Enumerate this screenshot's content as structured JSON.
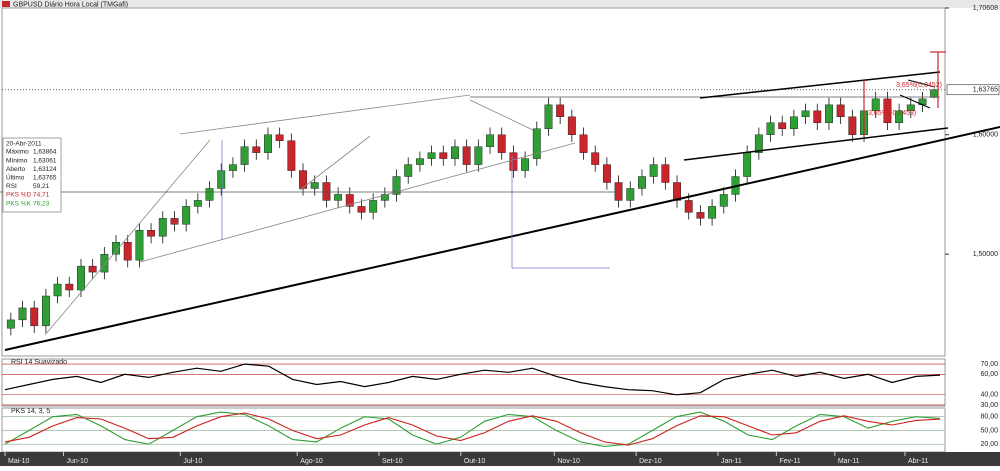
{
  "chart_data": {
    "type": "candlestick",
    "title": "GBPUSD Diário Hora Local (TMGafi)",
    "ylim": [
      1.4156,
      1.70608
    ],
    "yticks": [
      {
        "value": 1.5,
        "label": "1,50000"
      },
      {
        "value": 1.6,
        "label": "1,60000"
      },
      {
        "value": 1.70608,
        "label": "1,70608"
      }
    ],
    "last_price": {
      "value": 1.63765,
      "label": "1,63765"
    },
    "up_color": "#2f9e35",
    "down_color": "#c8262d",
    "annotations": [
      "3,65%(0,0452)",
      "3,65%(-0,0453)"
    ],
    "info": {
      "date": "20-Abr-2011",
      "rows": [
        [
          "Máximo",
          "1,63864"
        ],
        [
          "Mínimo",
          "1,63061"
        ],
        [
          "Aberto",
          "1,63124"
        ],
        [
          "Último",
          "1,63765"
        ],
        [
          "RSI",
          "59,21"
        ],
        [
          "PKS %D",
          "74,71"
        ],
        [
          "PKS %K",
          "76,23"
        ]
      ]
    },
    "categories": [
      "Mai-10",
      null,
      null,
      null,
      null,
      "Jun-10",
      null,
      null,
      null,
      null,
      null,
      null,
      null,
      null,
      null,
      "Jul-10",
      null,
      null,
      null,
      null,
      null,
      null,
      null,
      null,
      null,
      "Ago-10",
      null,
      null,
      null,
      null,
      null,
      null,
      "Set-10",
      null,
      null,
      null,
      null,
      null,
      null,
      "Out-10",
      null,
      null,
      null,
      null,
      null,
      null,
      null,
      "Nov-10",
      null,
      null,
      null,
      null,
      null,
      null,
      "Dez-10",
      null,
      null,
      null,
      null,
      null,
      null,
      "Jan-11",
      null,
      null,
      null,
      null,
      "Fev-11",
      null,
      null,
      null,
      null,
      "Mar-11",
      null,
      null,
      null,
      null,
      null,
      "Abr-11",
      null,
      null
    ],
    "candles": [
      [
        1.438,
        1.451,
        1.432,
        1.445
      ],
      [
        1.445,
        1.461,
        1.439,
        1.455
      ],
      [
        1.455,
        1.461,
        1.434,
        1.44
      ],
      [
        1.44,
        1.471,
        1.434,
        1.465
      ],
      [
        1.465,
        1.481,
        1.459,
        1.475
      ],
      [
        1.475,
        1.481,
        1.464,
        1.47
      ],
      [
        1.47,
        1.496,
        1.464,
        1.49
      ],
      [
        1.49,
        1.496,
        1.479,
        1.485
      ],
      [
        1.485,
        1.506,
        1.479,
        1.5
      ],
      [
        1.5,
        1.516,
        1.494,
        1.51
      ],
      [
        1.51,
        1.516,
        1.489,
        1.495
      ],
      [
        1.495,
        1.526,
        1.489,
        1.52
      ],
      [
        1.52,
        1.526,
        1.509,
        1.515
      ],
      [
        1.515,
        1.536,
        1.509,
        1.53
      ],
      [
        1.53,
        1.536,
        1.519,
        1.525
      ],
      [
        1.525,
        1.546,
        1.519,
        1.54
      ],
      [
        1.54,
        1.551,
        1.534,
        1.545
      ],
      [
        1.545,
        1.561,
        1.539,
        1.555
      ],
      [
        1.555,
        1.576,
        1.549,
        1.57
      ],
      [
        1.57,
        1.581,
        1.564,
        1.575
      ],
      [
        1.575,
        1.596,
        1.569,
        1.59
      ],
      [
        1.59,
        1.596,
        1.579,
        1.585
      ],
      [
        1.585,
        1.606,
        1.579,
        1.6
      ],
      [
        1.6,
        1.606,
        1.589,
        1.595
      ],
      [
        1.595,
        1.601,
        1.564,
        1.57
      ],
      [
        1.57,
        1.576,
        1.549,
        1.555
      ],
      [
        1.555,
        1.566,
        1.549,
        1.56
      ],
      [
        1.56,
        1.566,
        1.539,
        1.545
      ],
      [
        1.545,
        1.556,
        1.539,
        1.55
      ],
      [
        1.55,
        1.556,
        1.534,
        1.54
      ],
      [
        1.54,
        1.546,
        1.529,
        1.535
      ],
      [
        1.535,
        1.551,
        1.529,
        1.545
      ],
      [
        1.545,
        1.556,
        1.539,
        1.55
      ],
      [
        1.55,
        1.571,
        1.544,
        1.565
      ],
      [
        1.565,
        1.581,
        1.559,
        1.575
      ],
      [
        1.575,
        1.586,
        1.569,
        1.58
      ],
      [
        1.58,
        1.591,
        1.574,
        1.585
      ],
      [
        1.585,
        1.591,
        1.574,
        1.58
      ],
      [
        1.58,
        1.596,
        1.574,
        1.59
      ],
      [
        1.59,
        1.596,
        1.569,
        1.575
      ],
      [
        1.575,
        1.596,
        1.569,
        1.59
      ],
      [
        1.59,
        1.606,
        1.584,
        1.6
      ],
      [
        1.6,
        1.606,
        1.579,
        1.585
      ],
      [
        1.585,
        1.591,
        1.564,
        1.57
      ],
      [
        1.57,
        1.586,
        1.564,
        1.58
      ],
      [
        1.58,
        1.611,
        1.574,
        1.605
      ],
      [
        1.605,
        1.631,
        1.599,
        1.625
      ],
      [
        1.625,
        1.631,
        1.609,
        1.615
      ],
      [
        1.615,
        1.621,
        1.594,
        1.6
      ],
      [
        1.6,
        1.606,
        1.579,
        1.585
      ],
      [
        1.585,
        1.591,
        1.569,
        1.575
      ],
      [
        1.575,
        1.581,
        1.554,
        1.56
      ],
      [
        1.56,
        1.566,
        1.539,
        1.545
      ],
      [
        1.545,
        1.561,
        1.539,
        1.555
      ],
      [
        1.555,
        1.571,
        1.549,
        1.565
      ],
      [
        1.565,
        1.581,
        1.559,
        1.575
      ],
      [
        1.575,
        1.581,
        1.554,
        1.56
      ],
      [
        1.56,
        1.566,
        1.539,
        1.545
      ],
      [
        1.545,
        1.551,
        1.529,
        1.535
      ],
      [
        1.535,
        1.541,
        1.524,
        1.53
      ],
      [
        1.53,
        1.546,
        1.524,
        1.54
      ],
      [
        1.54,
        1.556,
        1.534,
        1.55
      ],
      [
        1.55,
        1.571,
        1.544,
        1.565
      ],
      [
        1.565,
        1.591,
        1.559,
        1.585
      ],
      [
        1.585,
        1.606,
        1.579,
        1.6
      ],
      [
        1.6,
        1.616,
        1.594,
        1.61
      ],
      [
        1.61,
        1.616,
        1.599,
        1.605
      ],
      [
        1.605,
        1.621,
        1.599,
        1.615
      ],
      [
        1.615,
        1.626,
        1.609,
        1.62
      ],
      [
        1.62,
        1.626,
        1.604,
        1.61
      ],
      [
        1.61,
        1.631,
        1.604,
        1.625
      ],
      [
        1.625,
        1.631,
        1.609,
        1.615
      ],
      [
        1.615,
        1.621,
        1.594,
        1.6
      ],
      [
        1.6,
        1.626,
        1.594,
        1.62
      ],
      [
        1.62,
        1.636,
        1.614,
        1.63
      ],
      [
        1.63,
        1.636,
        1.604,
        1.61
      ],
      [
        1.61,
        1.626,
        1.604,
        1.62
      ],
      [
        1.62,
        1.631,
        1.614,
        1.625
      ],
      [
        1.625,
        1.636,
        1.619,
        1.63
      ],
      [
        1.63124,
        1.63864,
        1.63061,
        1.63765
      ]
    ],
    "rsi": {
      "title": "RSI 14 Suavizado",
      "color": "#000000",
      "ylim": [
        29,
        75
      ],
      "yticks": [
        {
          "value": 30,
          "label": "30,00"
        },
        {
          "value": 40,
          "label": "40,00"
        },
        {
          "value": 60,
          "label": "60,00"
        },
        {
          "value": 70,
          "label": "70,00"
        }
      ],
      "values": [
        45,
        50,
        55,
        58,
        52,
        60,
        57,
        62,
        66,
        63,
        70,
        68,
        55,
        50,
        53,
        48,
        52,
        58,
        55,
        60,
        64,
        62,
        66,
        58,
        52,
        48,
        45,
        44,
        40,
        42,
        55,
        60,
        64,
        58,
        62,
        56,
        60,
        52,
        58,
        59.21
      ]
    },
    "stoch": {
      "title": "PKS 14, 3, 5",
      "ylim": [
        3,
        99
      ],
      "yticks": [
        {
          "value": 20,
          "label": "20,00"
        },
        {
          "value": 50,
          "label": "50,00"
        },
        {
          "value": 80,
          "label": "80,00"
        }
      ],
      "series": [
        {
          "name": "PKS %K",
          "color": "#2f9e35",
          "values": [
            20,
            50,
            80,
            85,
            60,
            30,
            20,
            50,
            80,
            90,
            85,
            60,
            30,
            25,
            55,
            80,
            75,
            40,
            20,
            35,
            70,
            85,
            80,
            50,
            25,
            15,
            20,
            50,
            80,
            90,
            70,
            40,
            30,
            60,
            85,
            80,
            55,
            70,
            80,
            76.23
          ]
        },
        {
          "name": "PKS %D",
          "color": "#d0201c",
          "values": [
            25,
            35,
            60,
            78,
            75,
            55,
            32,
            35,
            60,
            80,
            88,
            75,
            50,
            32,
            40,
            62,
            78,
            62,
            38,
            28,
            45,
            70,
            82,
            70,
            45,
            25,
            18,
            32,
            60,
            82,
            80,
            60,
            40,
            45,
            70,
            82,
            70,
            62,
            72,
            74.71
          ]
        }
      ]
    }
  }
}
